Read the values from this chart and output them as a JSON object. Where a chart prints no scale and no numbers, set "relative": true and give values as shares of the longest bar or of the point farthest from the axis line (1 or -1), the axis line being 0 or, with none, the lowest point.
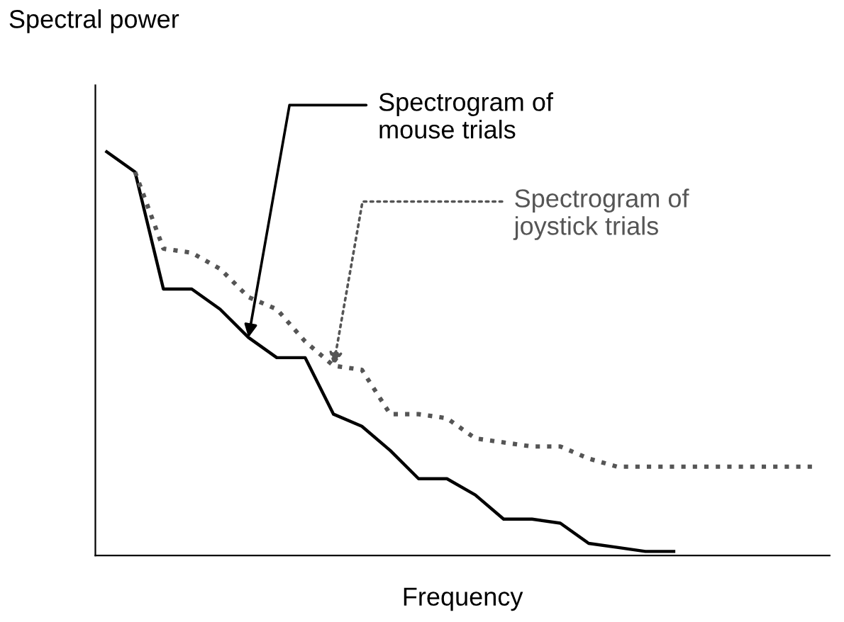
{
  "chart_data": {
    "type": "line",
    "relative": true,
    "xlabel": "Frequency",
    "ylabel": "Spectral power",
    "categories": [
      null,
      null,
      null,
      null,
      null,
      null,
      null,
      null,
      null,
      null,
      null,
      null,
      null,
      null,
      null,
      null,
      null,
      null,
      null,
      null,
      null,
      null,
      null,
      null,
      null,
      null
    ],
    "series": [
      {
        "name": "Spectrogram of\nmouse trials",
        "color": "#000000",
        "line_style": "solid",
        "values": [
          1.0,
          0.95,
          0.66,
          0.66,
          0.61,
          0.54,
          0.49,
          0.49,
          0.35,
          0.32,
          0.26,
          0.19,
          0.19,
          0.15,
          0.09,
          0.09,
          0.08,
          0.03,
          0.02,
          0.01,
          0.01,
          null,
          null,
          null,
          null,
          null
        ]
      },
      {
        "name": "Spectrogram of\njoystick trials",
        "color": "#555555",
        "line_style": "dotted",
        "values": [
          null,
          0.95,
          0.76,
          0.75,
          0.71,
          0.64,
          0.61,
          0.53,
          0.47,
          0.46,
          0.35,
          0.35,
          0.34,
          0.29,
          0.28,
          0.27,
          0.27,
          0.24,
          0.22,
          0.22,
          0.22,
          0.22,
          0.22,
          0.22,
          0.22,
          0.22
        ]
      }
    ]
  }
}
